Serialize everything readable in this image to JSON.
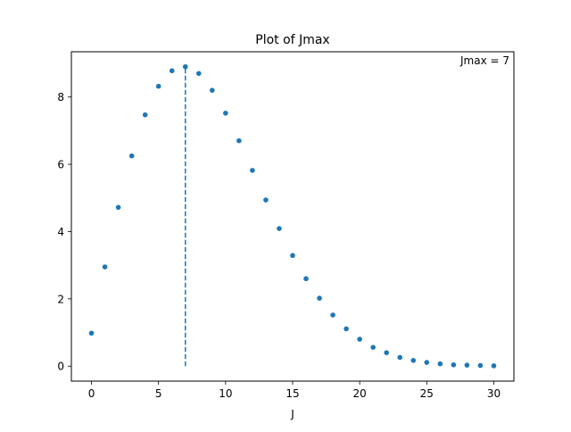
{
  "chart_data": {
    "type": "scatter",
    "title": "Plot of Jmax",
    "xlabel": "J",
    "ylabel": "",
    "xlim": [
      -1.5,
      31.5
    ],
    "ylim": [
      -0.445,
      9.345
    ],
    "xticks": [
      0,
      5,
      10,
      15,
      20,
      25,
      30
    ],
    "xtick_labels": [
      "0",
      "5",
      "10",
      "15",
      "20",
      "25",
      "30"
    ],
    "yticks": [
      0,
      2,
      4,
      6,
      8
    ],
    "ytick_labels": [
      "0",
      "2",
      "4",
      "6",
      "8"
    ],
    "grid": false,
    "annotation": "Jmax = 7",
    "annotation_position": "top-right",
    "marker_color": "#1f77b4",
    "series": [
      {
        "x": [
          0,
          1,
          2,
          3,
          4,
          5,
          6,
          7,
          8,
          9,
          10,
          11,
          12,
          13,
          14,
          15,
          16,
          17,
          18,
          19,
          20,
          21,
          22,
          23,
          24,
          25,
          26,
          27,
          28,
          29,
          30
        ],
        "values": [
          0.98,
          2.95,
          4.72,
          6.25,
          7.47,
          8.32,
          8.78,
          8.9,
          8.7,
          8.2,
          7.52,
          6.7,
          5.82,
          4.94,
          4.09,
          3.29,
          2.6,
          2.02,
          1.52,
          1.11,
          0.8,
          0.56,
          0.4,
          0.26,
          0.17,
          0.11,
          0.07,
          0.04,
          0.03,
          0.02,
          0.01
        ]
      }
    ],
    "vline": {
      "x": 7,
      "y_from": 0,
      "y_to": 8.9,
      "style": "dashed"
    }
  }
}
